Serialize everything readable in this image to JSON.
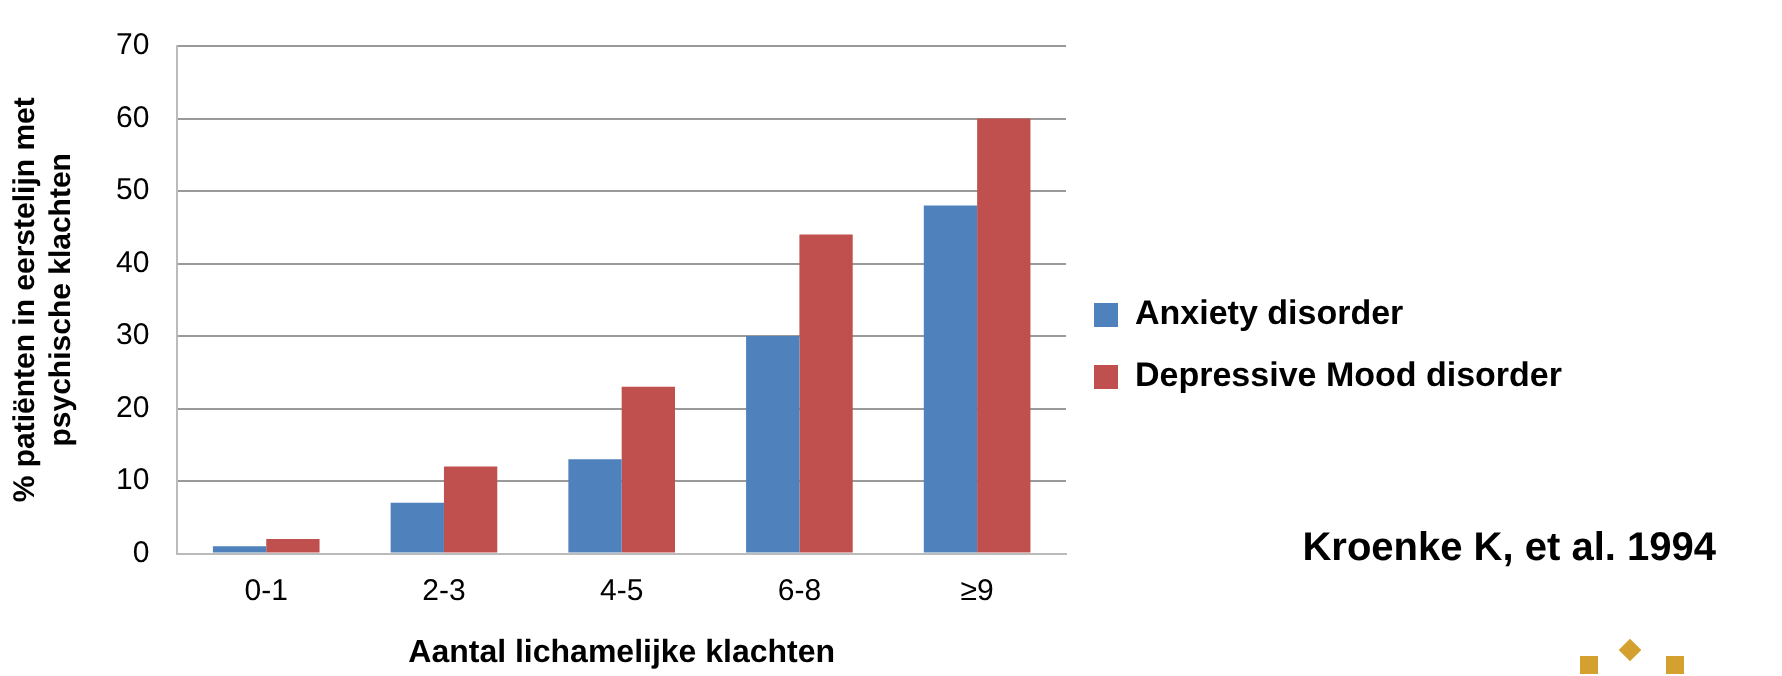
{
  "chart_data": {
    "type": "bar",
    "xlabel": "Aantal lichamelijke klachten",
    "ylabel": "% patiënten in eerstelijn met psychische klachten",
    "categories": [
      "0-1",
      "2-3",
      "4-5",
      "6-8",
      "≥9"
    ],
    "series": [
      {
        "name": "Anxiety disorder",
        "color": "#4f81bd",
        "values": [
          1,
          7,
          13,
          30,
          48
        ]
      },
      {
        "name": "Depressive Mood disorder",
        "color": "#c0504d",
        "values": [
          2,
          12,
          23,
          44,
          60
        ]
      }
    ],
    "ylim": [
      0,
      70
    ],
    "yticks": [
      0,
      10,
      20,
      30,
      40,
      50,
      60,
      70
    ],
    "grid": "y",
    "legend": "right",
    "annotations": [
      "Kroenke K, et al. 1994"
    ]
  }
}
